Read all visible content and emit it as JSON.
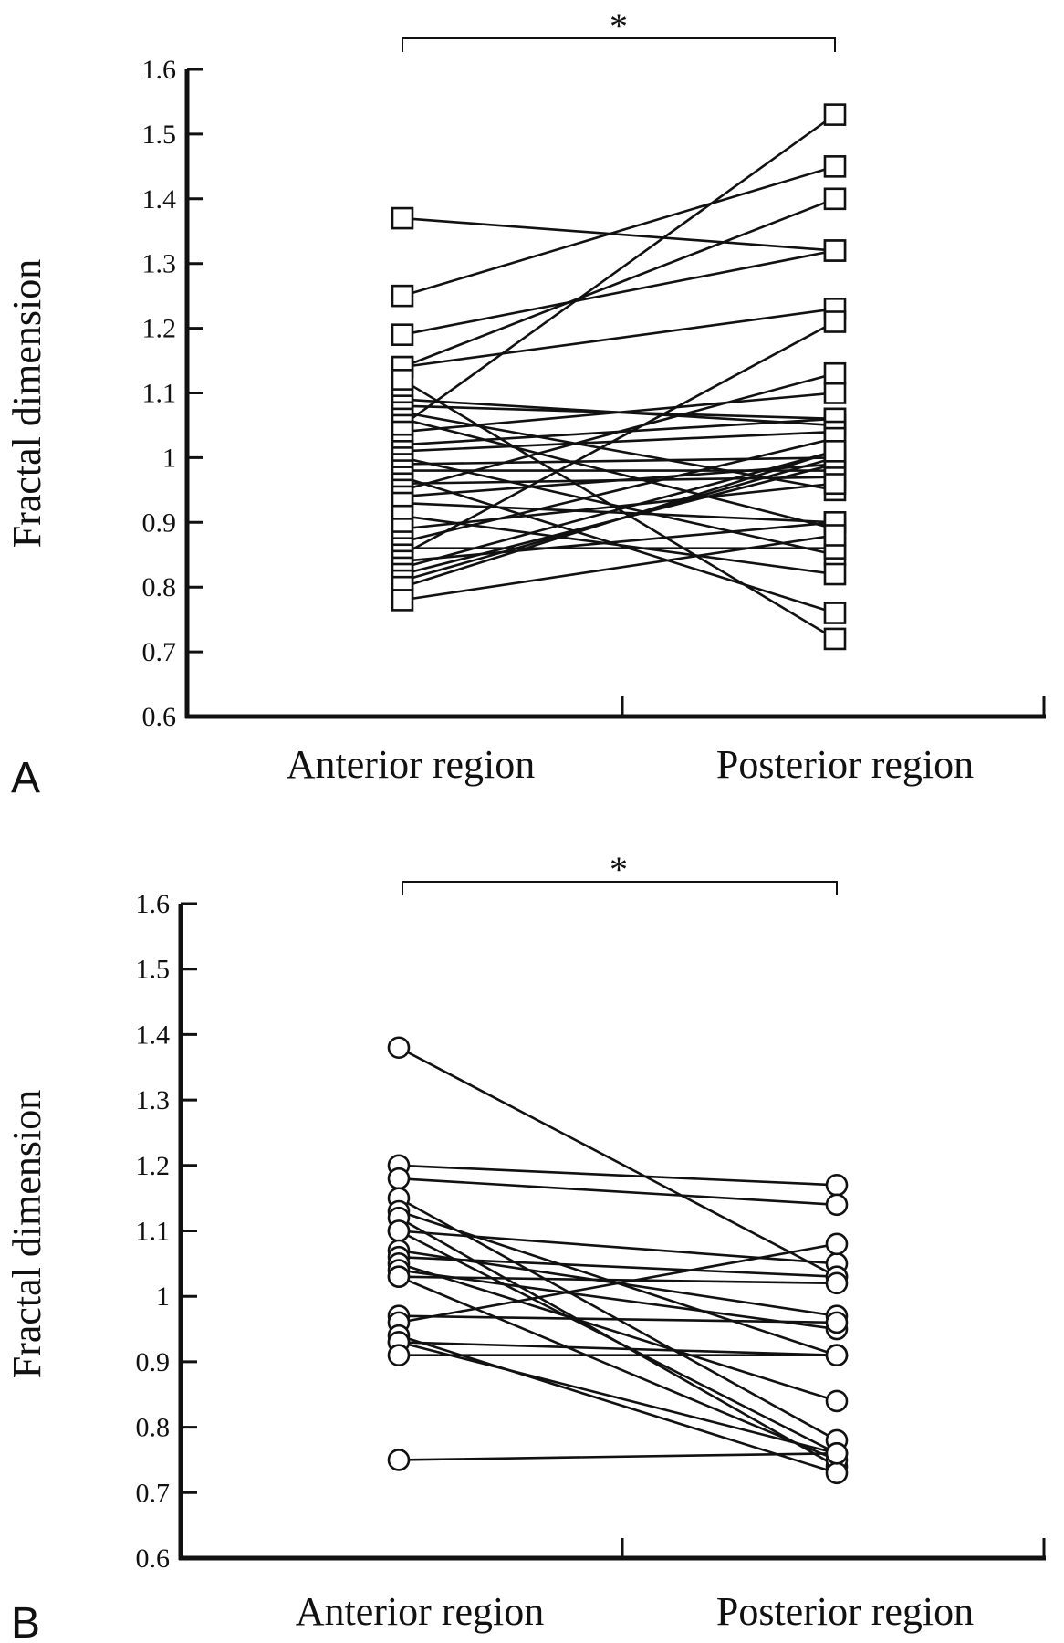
{
  "chart_data": [
    {
      "panel_label": "A",
      "type": "line",
      "marker": "square",
      "title": "",
      "xlabel": "",
      "ylabel": "Fractal dimension",
      "categories": [
        "Anterior region",
        "Posterior region"
      ],
      "ylim": [
        0.6,
        1.6
      ],
      "yticks": [
        "0.6",
        "0.7",
        "0.8",
        "0.9",
        "1",
        "1.1",
        "1.2",
        "1.3",
        "1.4",
        "1.5",
        "1.6"
      ],
      "significance": "*",
      "grid": false,
      "pairs": [
        [
          1.37,
          1.32
        ],
        [
          1.25,
          1.45
        ],
        [
          1.19,
          1.32
        ],
        [
          1.14,
          1.23
        ],
        [
          1.14,
          1.4
        ],
        [
          1.12,
          0.72
        ],
        [
          1.09,
          1.05
        ],
        [
          1.08,
          1.06
        ],
        [
          1.07,
          0.95
        ],
        [
          1.06,
          0.89
        ],
        [
          1.05,
          1.53
        ],
        [
          1.04,
          1.1
        ],
        [
          1.02,
          1.06
        ],
        [
          1.01,
          1.04
        ],
        [
          1.0,
          0.85
        ],
        [
          0.99,
          1.0
        ],
        [
          0.98,
          0.98
        ],
        [
          0.97,
          0.76
        ],
        [
          0.96,
          0.97
        ],
        [
          0.95,
          1.13
        ],
        [
          0.94,
          0.99
        ],
        [
          0.93,
          0.9
        ],
        [
          0.91,
          0.82
        ],
        [
          0.89,
          0.96
        ],
        [
          0.87,
          1.03
        ],
        [
          0.86,
          0.86
        ],
        [
          0.85,
          1.21
        ],
        [
          0.84,
          0.9
        ],
        [
          0.83,
          1.01
        ],
        [
          0.82,
          0.99
        ],
        [
          0.81,
          1.0
        ],
        [
          0.8,
          1.01
        ],
        [
          0.78,
          0.88
        ]
      ]
    },
    {
      "panel_label": "B",
      "type": "line",
      "marker": "circle",
      "title": "",
      "xlabel": "",
      "ylabel": "Fractal dimension",
      "categories": [
        "Anterior region",
        "Posterior region"
      ],
      "ylim": [
        0.6,
        1.6
      ],
      "yticks": [
        "0.6",
        "0.7",
        "0.8",
        "0.9",
        "1",
        "1.1",
        "1.2",
        "1.3",
        "1.4",
        "1.5",
        "1.6"
      ],
      "significance": "*",
      "grid": false,
      "pairs": [
        [
          1.38,
          1.03
        ],
        [
          1.2,
          1.17
        ],
        [
          1.18,
          1.14
        ],
        [
          1.15,
          0.78
        ],
        [
          1.13,
          0.91
        ],
        [
          1.12,
          0.74
        ],
        [
          1.1,
          1.05
        ],
        [
          1.1,
          0.76
        ],
        [
          1.07,
          0.97
        ],
        [
          1.06,
          1.03
        ],
        [
          1.05,
          0.84
        ],
        [
          1.04,
          0.95
        ],
        [
          1.03,
          0.75
        ],
        [
          1.03,
          1.02
        ],
        [
          0.97,
          0.96
        ],
        [
          0.96,
          1.08
        ],
        [
          0.94,
          0.73
        ],
        [
          0.93,
          0.76
        ],
        [
          0.93,
          0.91
        ],
        [
          0.91,
          0.91
        ],
        [
          0.75,
          0.76
        ]
      ]
    }
  ]
}
